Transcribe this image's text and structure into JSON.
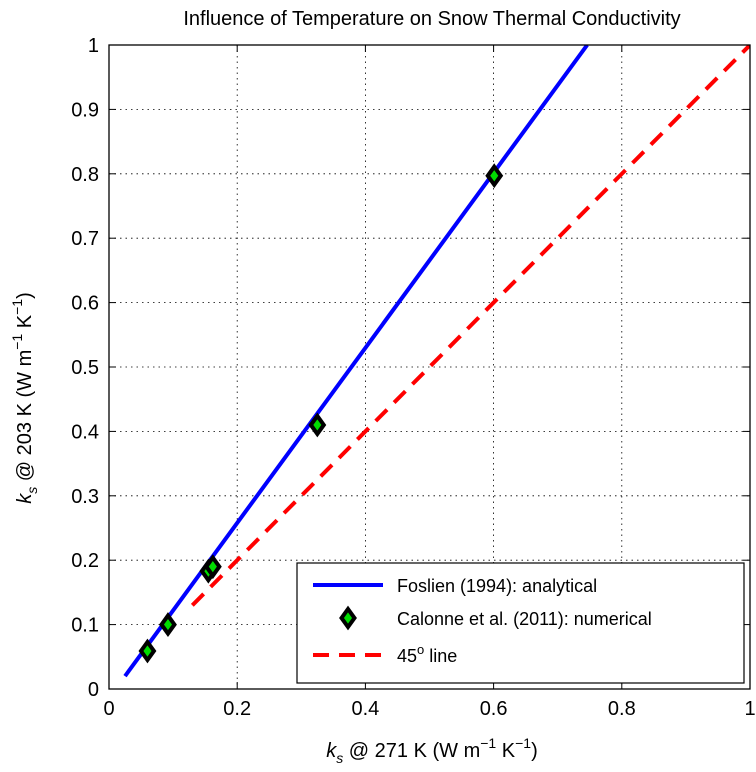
{
  "chart_data": {
    "type": "scatter",
    "title": "Influence of Temperature on Snow Thermal Conductivity",
    "xlabel": {
      "main": "k",
      "sub": "s",
      "rest": " @ 271 K (W m",
      "exp1": "−1",
      "mid": " K",
      "exp2": "−1",
      "end": ")"
    },
    "ylabel": {
      "main": "k",
      "sub": "s",
      "rest": " @ 203 K (W m",
      "exp1": "−1",
      "mid": " K",
      "exp2": "−1",
      "end": ")"
    },
    "xlim": [
      0,
      1
    ],
    "ylim": [
      0,
      1
    ],
    "xticks": [
      0,
      0.2,
      0.4,
      0.6,
      0.8,
      1
    ],
    "xtick_labels": [
      "0",
      "0.2",
      "0.4",
      "0.6",
      "0.8",
      "1"
    ],
    "yticks": [
      0,
      0.1,
      0.2,
      0.3,
      0.4,
      0.5,
      0.6,
      0.7,
      0.8,
      0.9,
      1
    ],
    "ytick_labels": [
      "0",
      "0.1",
      "0.2",
      "0.3",
      "0.4",
      "0.5",
      "0.6",
      "0.7",
      "0.8",
      "0.9",
      "1"
    ],
    "grid": true,
    "legend_position": "bottom-right",
    "series": [
      {
        "name": "Foslien (1994): analytical",
        "kind": "line",
        "style": "solid",
        "color": "#0000ff",
        "x": [
          0.025,
          0.746
        ],
        "y": [
          0.02,
          1.0
        ]
      },
      {
        "name": "Calonne et al. (2011): numerical",
        "kind": "markers",
        "marker": "diamond",
        "color": "#00dd00",
        "edge_color": "#000000",
        "x": [
          0.06,
          0.092,
          0.155,
          0.162,
          0.325,
          0.601
        ],
        "y": [
          0.059,
          0.1,
          0.183,
          0.19,
          0.41,
          0.797
        ]
      },
      {
        "name": "45",
        "name_sup": "o",
        "name_rest": " line",
        "kind": "line",
        "style": "dashed",
        "color": "#ff0000",
        "x": [
          0.13,
          1.0
        ],
        "y": [
          0.13,
          1.0
        ]
      }
    ]
  }
}
